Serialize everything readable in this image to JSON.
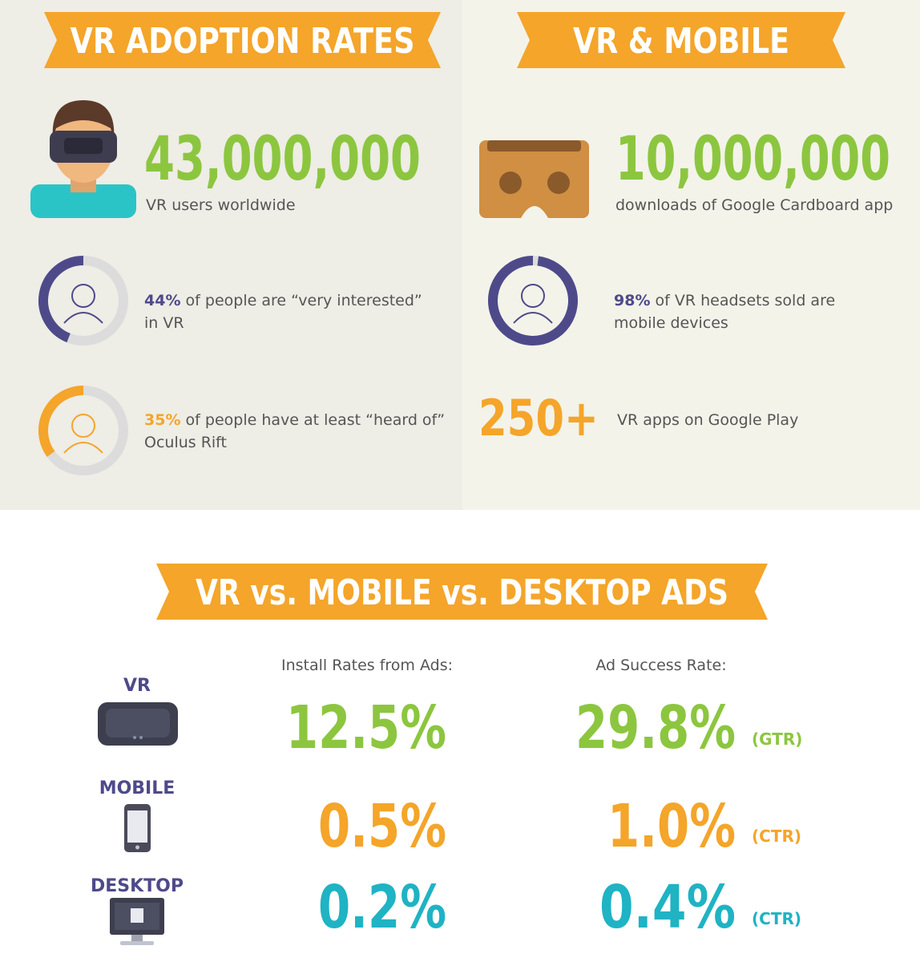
{
  "sections": [
    {
      "title": "VR ADOPTION RATES",
      "headline": {
        "number": "43,000,000",
        "caption": "VR users worldwide"
      },
      "stats": [
        {
          "ring": {
            "value": 44,
            "label": "44%"
          },
          "text_lines": [
            "of people are “very interested”",
            "in VR"
          ]
        },
        {
          "ring": {
            "value": 35,
            "label": "35%"
          },
          "text_lines": [
            "of people have at least “heard of”",
            "Oculus Rift"
          ]
        }
      ]
    },
    {
      "title": "VR & MOBILE",
      "headline": {
        "number": "10,000,000",
        "caption": "downloads of Google Cardboard app"
      },
      "stats": [
        {
          "ring": {
            "value": 98,
            "label": "98%"
          },
          "text_lines": [
            "of VR headsets sold are",
            "mobile devices"
          ]
        }
      ],
      "extra": {
        "number": "250+",
        "caption": "VR apps on Google Play"
      }
    }
  ],
  "ads": {
    "title": "VR vs. MOBILE vs. DESKTOP ADS",
    "columns": [
      "Install Rates from Ads:",
      "Ad Success Rate:"
    ],
    "rows": [
      {
        "label": "VR",
        "install": "12.5%",
        "success": "29.8%",
        "metric": "(GTR)"
      },
      {
        "label": "MOBILE",
        "install": "0.5%",
        "success": "1.0%",
        "metric": "(CTR)"
      },
      {
        "label": "DESKTOP",
        "install": "0.2%",
        "success": "0.4%",
        "metric": "(CTR)"
      }
    ]
  }
}
